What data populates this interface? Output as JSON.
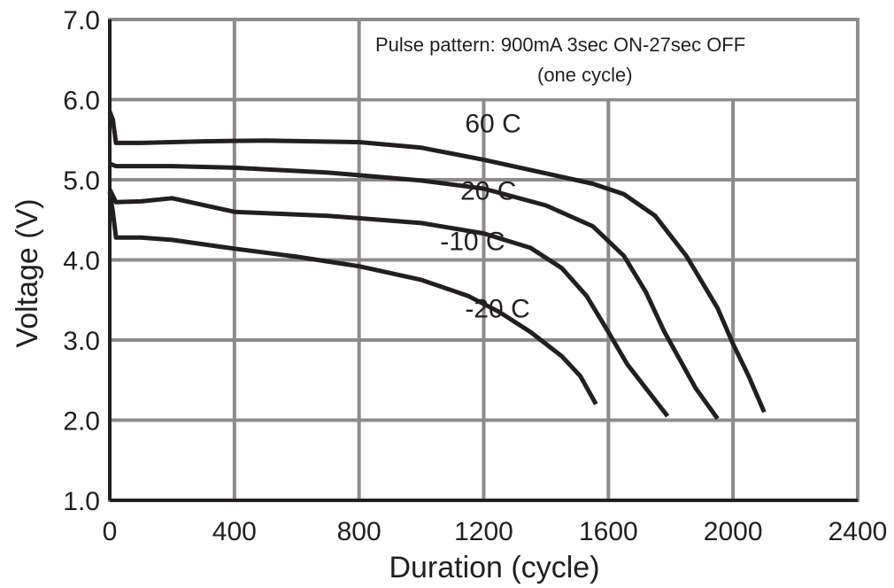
{
  "chart_data": {
    "type": "line",
    "title": "",
    "xlabel": "Duration (cycle)",
    "ylabel": "Voltage (V)",
    "xlim": [
      0,
      2400
    ],
    "ylim": [
      1.0,
      7.0
    ],
    "x_ticks": [
      0,
      400,
      800,
      1200,
      1600,
      2000,
      2400
    ],
    "x_tick_labels": [
      "0",
      "400",
      "800",
      "1200",
      "1600",
      "2000",
      "2400"
    ],
    "y_ticks": [
      1.0,
      2.0,
      3.0,
      4.0,
      5.0,
      6.0,
      7.0
    ],
    "y_tick_labels": [
      "1.0",
      "2.0",
      "3.0",
      "4.0",
      "5.0",
      "6.0",
      "7.0"
    ],
    "grid": true,
    "annotation": {
      "line1": "Pulse pattern:  900mA 3sec ON-27sec OFF",
      "line2": "(one cycle)"
    },
    "series": [
      {
        "name": "60  C",
        "points": [
          [
            0,
            5.85
          ],
          [
            10,
            5.75
          ],
          [
            20,
            5.46
          ],
          [
            100,
            5.46
          ],
          [
            300,
            5.48
          ],
          [
            500,
            5.49
          ],
          [
            800,
            5.47
          ],
          [
            1000,
            5.4
          ],
          [
            1200,
            5.25
          ],
          [
            1400,
            5.08
          ],
          [
            1550,
            4.95
          ],
          [
            1650,
            4.82
          ],
          [
            1750,
            4.55
          ],
          [
            1850,
            4.05
          ],
          [
            1950,
            3.4
          ],
          [
            2000,
            2.95
          ],
          [
            2050,
            2.55
          ],
          [
            2100,
            2.1
          ]
        ],
        "label_anchor": [
          1140,
          5.59
        ]
      },
      {
        "name": "20  C",
        "points": [
          [
            0,
            5.2
          ],
          [
            20,
            5.17
          ],
          [
            200,
            5.17
          ],
          [
            400,
            5.15
          ],
          [
            700,
            5.09
          ],
          [
            1000,
            4.99
          ],
          [
            1200,
            4.89
          ],
          [
            1400,
            4.68
          ],
          [
            1550,
            4.42
          ],
          [
            1650,
            4.05
          ],
          [
            1720,
            3.6
          ],
          [
            1780,
            3.1
          ],
          [
            1830,
            2.75
          ],
          [
            1880,
            2.4
          ],
          [
            1950,
            2.02
          ]
        ],
        "label_anchor": [
          1125,
          4.75
        ]
      },
      {
        "name": "-10  C",
        "points": [
          [
            0,
            4.88
          ],
          [
            20,
            4.72
          ],
          [
            100,
            4.73
          ],
          [
            200,
            4.77
          ],
          [
            400,
            4.6
          ],
          [
            700,
            4.55
          ],
          [
            1000,
            4.46
          ],
          [
            1200,
            4.33
          ],
          [
            1350,
            4.15
          ],
          [
            1450,
            3.9
          ],
          [
            1530,
            3.55
          ],
          [
            1600,
            3.1
          ],
          [
            1660,
            2.7
          ],
          [
            1720,
            2.4
          ],
          [
            1790,
            2.05
          ]
        ],
        "label_anchor": [
          1060,
          4.12
        ]
      },
      {
        "name": "-20  C",
        "points": [
          [
            0,
            4.85
          ],
          [
            10,
            4.6
          ],
          [
            20,
            4.28
          ],
          [
            100,
            4.28
          ],
          [
            200,
            4.25
          ],
          [
            400,
            4.14
          ],
          [
            600,
            4.04
          ],
          [
            800,
            3.92
          ],
          [
            1000,
            3.75
          ],
          [
            1150,
            3.55
          ],
          [
            1250,
            3.35
          ],
          [
            1350,
            3.1
          ],
          [
            1450,
            2.8
          ],
          [
            1510,
            2.55
          ],
          [
            1560,
            2.2
          ]
        ],
        "label_anchor": [
          1140,
          3.28
        ]
      }
    ]
  }
}
